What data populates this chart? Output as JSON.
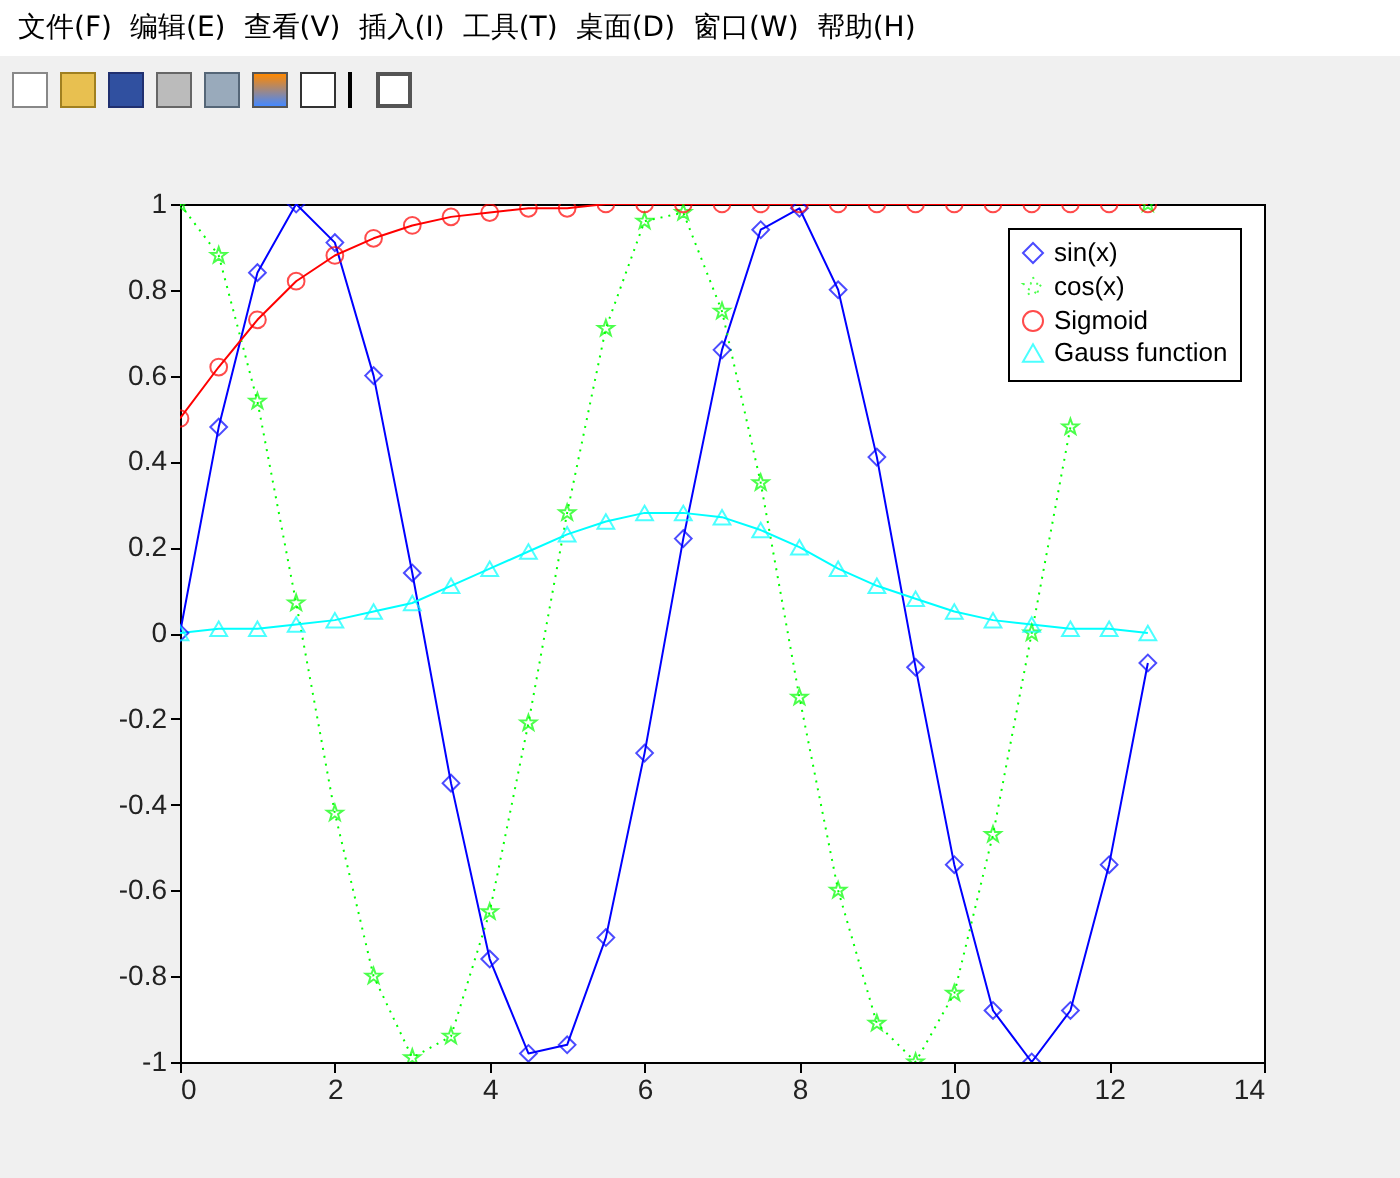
{
  "chart_data": {
    "type": "line",
    "x": [
      0,
      0.5,
      1,
      1.5,
      2,
      2.5,
      3,
      3.5,
      4,
      4.5,
      5,
      5.5,
      6,
      6.5,
      7,
      7.5,
      8,
      8.5,
      9,
      9.5,
      10,
      10.5,
      11,
      11.5,
      12,
      12.5
    ],
    "series": [
      {
        "name": "sin(x)",
        "color": "#0000ff",
        "marker": "diamond",
        "line_style": "solid",
        "values": [
          0,
          0.48,
          0.84,
          1.0,
          0.91,
          0.6,
          0.14,
          -0.35,
          -0.76,
          -0.98,
          -0.96,
          -0.71,
          -0.28,
          0.22,
          0.66,
          0.94,
          0.99,
          0.8,
          0.41,
          -0.08,
          -0.54,
          -0.88,
          -1.0,
          -0.88,
          -0.54,
          -0.07
        ]
      },
      {
        "name": "cos(x)",
        "color": "#00ff00",
        "marker": "star",
        "line_style": "dotted",
        "values": [
          1.0,
          0.88,
          0.54,
          0.07,
          -0.42,
          -0.8,
          -0.99,
          -0.94,
          -0.65,
          -0.21,
          0.28,
          0.71,
          0.96,
          0.98,
          0.75,
          0.35,
          -0.15,
          -0.6,
          -0.91,
          -1.0,
          -0.84,
          -0.47,
          0.0,
          0.48,
          null,
          1.0
        ]
      },
      {
        "name": "Sigmoid",
        "color": "#ff0000",
        "marker": "circle",
        "line_style": "solid",
        "values": [
          0.5,
          0.62,
          0.73,
          0.82,
          0.88,
          0.92,
          0.95,
          0.97,
          0.98,
          0.99,
          0.99,
          1.0,
          1.0,
          1.0,
          1.0,
          1.0,
          1.0,
          1.0,
          1.0,
          1.0,
          1.0,
          1.0,
          1.0,
          1.0,
          1.0,
          1.0
        ]
      },
      {
        "name": "Gauss function",
        "color": "#00ffff",
        "marker": "triangle",
        "line_style": "solid",
        "values": [
          0.0,
          0.01,
          0.01,
          0.02,
          0.03,
          0.05,
          0.07,
          0.11,
          0.15,
          0.19,
          0.23,
          0.26,
          0.28,
          0.28,
          0.27,
          0.24,
          0.2,
          0.15,
          0.11,
          0.08,
          0.05,
          0.03,
          0.02,
          0.01,
          0.01,
          0.0
        ]
      }
    ],
    "xlim": [
      0,
      14
    ],
    "xticks": [
      0,
      2,
      4,
      6,
      8,
      10,
      12,
      14
    ],
    "ylim": [
      -1,
      1
    ],
    "yticks": [
      -1,
      -0.8,
      -0.6,
      -0.4,
      -0.2,
      0,
      0.2,
      0.4,
      0.6,
      0.8,
      1
    ],
    "legend": "top right",
    "grid": false,
    "annotations": [
      "文件(F)",
      "编辑(E)",
      "查看(V)",
      "插入(I)",
      "工具(T)",
      "桌面(D)",
      "窗口(W)",
      "帮助(H)"
    ]
  }
}
